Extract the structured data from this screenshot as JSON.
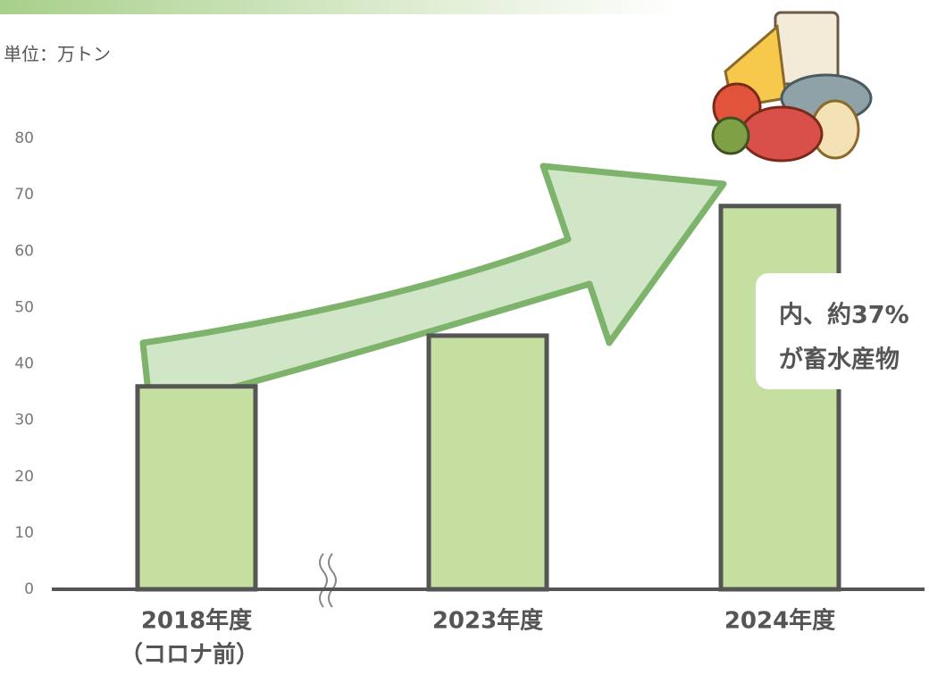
{
  "chart_data": {
    "type": "bar",
    "unit_label": "単位：万トン",
    "categories": [
      "2018年度",
      "2023年度",
      "2024年度"
    ],
    "category_notes": [
      "（コロナ前）",
      null,
      null
    ],
    "values": [
      36,
      45,
      68
    ],
    "color": "#c5dfa0",
    "ylim": [
      0,
      80
    ],
    "yticks": [
      0,
      10,
      20,
      30,
      40,
      50,
      60,
      70,
      80
    ],
    "grid": false,
    "annotation": [
      "内、約37%",
      "が畜水産物"
    ]
  }
}
